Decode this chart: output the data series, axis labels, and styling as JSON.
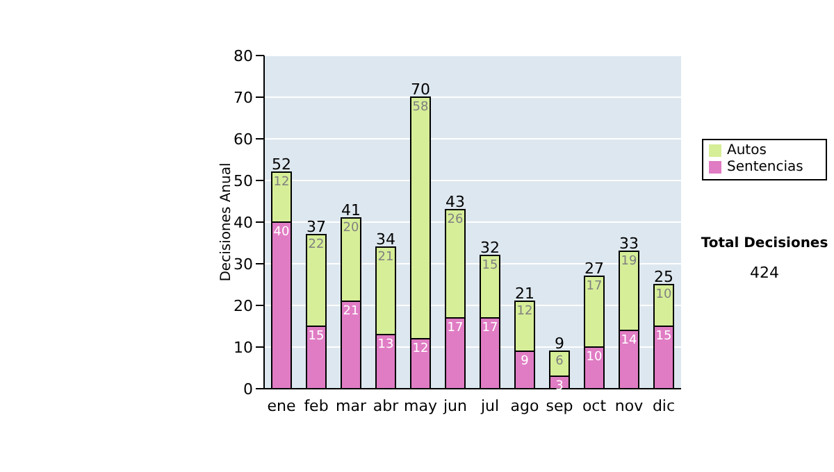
{
  "chart_data": {
    "type": "bar",
    "stacked": true,
    "ylabel": "Decisiones Anual",
    "categories": [
      "ene",
      "feb",
      "mar",
      "abr",
      "may",
      "jun",
      "jul",
      "ago",
      "sep",
      "oct",
      "nov",
      "dic"
    ],
    "series": [
      {
        "name": "Sentencias",
        "color": "#e07cc4",
        "values": [
          40,
          15,
          21,
          13,
          12,
          17,
          17,
          9,
          3,
          10,
          14,
          15
        ]
      },
      {
        "name": "Autos",
        "color": "#d6ee98",
        "values": [
          12,
          22,
          20,
          21,
          58,
          26,
          15,
          12,
          6,
          17,
          19,
          10
        ]
      }
    ],
    "totals": [
      "52",
      "37",
      "41",
      "34",
      "70",
      "43",
      "32",
      "21",
      "9",
      "27",
      "33",
      "25"
    ],
    "ylim": [
      0,
      80
    ],
    "yticks": [
      0,
      10,
      20,
      30,
      40,
      50,
      60,
      70,
      80
    ],
    "grid": "y",
    "legend": "right",
    "data_labels": true,
    "annotations": [
      "Total Decisiones",
      "424"
    ]
  }
}
